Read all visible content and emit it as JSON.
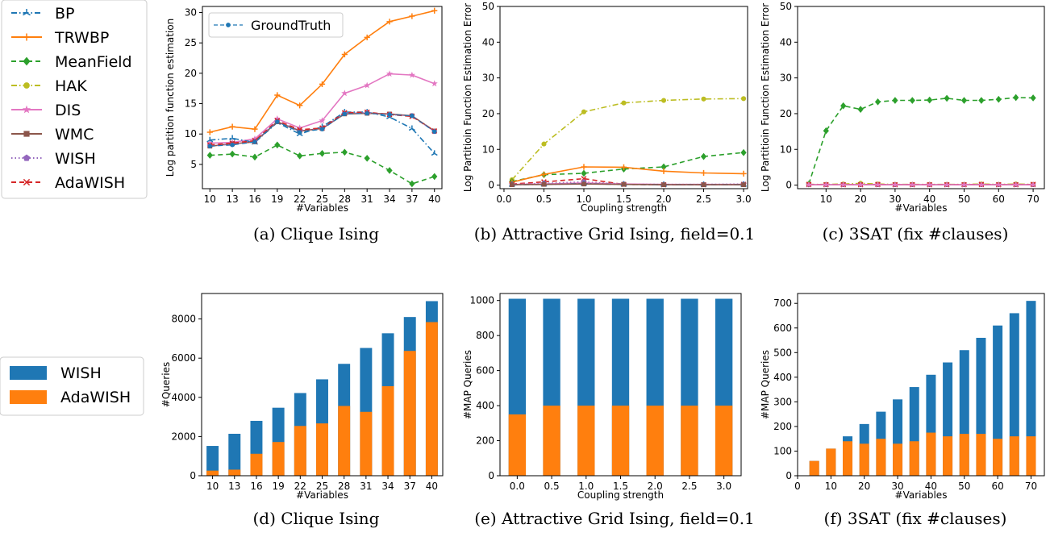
{
  "colors": {
    "BP": "#1f77b4",
    "TRWBP": "#ff7f0e",
    "MeanField": "#2ca02c",
    "HAK": "#bcbd22",
    "DIS": "#e377c2",
    "WMC": "#8c564b",
    "WISH": "#9467bd",
    "AdaWISH": "#d62728",
    "GroundTruth": "#1f77b4",
    "bar_wish": "#1f77b4",
    "bar_adawish": "#ff7f0e"
  },
  "legend_methods": {
    "items": [
      {
        "name": "BP",
        "style": "dashdot",
        "marker": "tri",
        "color_key": "BP"
      },
      {
        "name": "TRWBP",
        "style": "solid",
        "marker": "plus",
        "color_key": "TRWBP"
      },
      {
        "name": "MeanField",
        "style": "dashed",
        "marker": "diamond",
        "color_key": "MeanField"
      },
      {
        "name": "HAK",
        "style": "dashdot",
        "marker": "circle",
        "color_key": "HAK"
      },
      {
        "name": "DIS",
        "style": "solid",
        "marker": "star",
        "color_key": "DIS"
      },
      {
        "name": "WMC",
        "style": "solid",
        "marker": "square",
        "color_key": "WMC"
      },
      {
        "name": "WISH",
        "style": "dotted",
        "marker": "pentagon",
        "color_key": "WISH"
      },
      {
        "name": "AdaWISH",
        "style": "dashed",
        "marker": "x",
        "color_key": "AdaWISH"
      }
    ]
  },
  "legend_bars": {
    "items": [
      {
        "name": "WISH",
        "color_key": "bar_wish"
      },
      {
        "name": "AdaWISH",
        "color_key": "bar_adawish"
      }
    ]
  },
  "chart_data": [
    {
      "id": "a",
      "type": "line",
      "caption": "(a) Clique Ising",
      "xlabel": "#Variables",
      "ylabel": "Log partition function estimation",
      "x": [
        10,
        13,
        16,
        19,
        22,
        25,
        28,
        31,
        34,
        37,
        40
      ],
      "x_ticks": [
        10,
        13,
        16,
        19,
        22,
        25,
        28,
        31,
        34,
        37,
        40
      ],
      "xlim": [
        9,
        41
      ],
      "ylim": [
        1,
        31
      ],
      "y_ticks": [
        5,
        10,
        15,
        20,
        25,
        30
      ],
      "inner_legend": {
        "name": "GroundTruth",
        "placement": "top-left"
      },
      "series": [
        {
          "name": "TRWBP",
          "values": [
            10.3,
            11.2,
            10.8,
            16.4,
            14.7,
            18.2,
            23.1,
            25.9,
            28.5,
            29.4,
            30.3
          ]
        },
        {
          "name": "DIS",
          "values": [
            8.5,
            8.6,
            9.2,
            12.5,
            11.0,
            12.2,
            16.7,
            18.0,
            19.9,
            19.7,
            18.3
          ]
        },
        {
          "name": "BP",
          "values": [
            9.0,
            9.3,
            8.6,
            11.9,
            10.0,
            11.2,
            13.6,
            13.6,
            12.8,
            10.9,
            6.8
          ]
        },
        {
          "name": "WMC",
          "values": [
            8.0,
            8.4,
            8.7,
            12.0,
            10.5,
            10.9,
            13.3,
            13.4,
            13.3,
            13.0,
            10.5
          ]
        },
        {
          "name": "WISH",
          "values": [
            8.1,
            8.3,
            8.8,
            12.1,
            10.6,
            10.9,
            13.4,
            13.5,
            13.2,
            13.0,
            10.4
          ]
        },
        {
          "name": "AdaWISH",
          "values": [
            8.2,
            8.5,
            8.9,
            12.2,
            10.7,
            11.0,
            13.5,
            13.6,
            13.2,
            12.9,
            10.5
          ]
        },
        {
          "name": "GroundTruth",
          "values": [
            8.0,
            8.2,
            8.7,
            12.0,
            10.3,
            10.8,
            13.3,
            13.4,
            13.2,
            13.0,
            10.4
          ]
        },
        {
          "name": "MeanField",
          "values": [
            6.5,
            6.7,
            6.2,
            8.2,
            6.4,
            6.8,
            7.0,
            6.0,
            4.0,
            1.8,
            3.0
          ]
        }
      ]
    },
    {
      "id": "b",
      "type": "line",
      "caption": "(b) Attractive Grid Ising, field=0.1",
      "xlabel": "Coupling strength",
      "ylabel": "Log Partitioin Function Estimation Error",
      "x": [
        0.1,
        0.5,
        1.0,
        1.5,
        2.0,
        2.5,
        3.0
      ],
      "x_ticks": [
        0.0,
        0.5,
        1.0,
        1.5,
        2.0,
        2.5,
        3.0
      ],
      "x_tick_labels": [
        "0.0",
        "0.5",
        "1.0",
        "1.5",
        "2.0",
        "2.5",
        "3.0"
      ],
      "xlim": [
        -0.05,
        3.05
      ],
      "ylim": [
        -1,
        50
      ],
      "y_ticks": [
        0,
        10,
        20,
        30,
        40,
        50
      ],
      "series": [
        {
          "name": "HAK",
          "values": [
            1.5,
            11.5,
            20.5,
            23.0,
            23.7,
            24.1,
            24.2
          ]
        },
        {
          "name": "MeanField",
          "values": [
            1.0,
            2.9,
            3.3,
            4.5,
            5.1,
            8.0,
            9.1
          ]
        },
        {
          "name": "TRWBP",
          "values": [
            0.8,
            3.0,
            5.1,
            5.0,
            3.9,
            3.4,
            3.2
          ]
        },
        {
          "name": "AdaWISH",
          "values": [
            0.3,
            0.9,
            1.8,
            0.2,
            0.1,
            0.1,
            0.2
          ]
        },
        {
          "name": "WISH",
          "values": [
            0.2,
            0.5,
            0.9,
            0.3,
            0.2,
            0.2,
            0.3
          ]
        },
        {
          "name": "DIS",
          "values": [
            0.2,
            0.3,
            0.6,
            0.3,
            0.2,
            0.2,
            0.2
          ]
        },
        {
          "name": "BP",
          "values": [
            0.1,
            0.2,
            0.4,
            0.2,
            0.1,
            0.1,
            0.1
          ]
        },
        {
          "name": "WMC",
          "values": [
            0.1,
            0.2,
            0.3,
            0.2,
            0.1,
            0.1,
            0.1
          ]
        }
      ]
    },
    {
      "id": "c",
      "type": "line",
      "caption": "(c) 3SAT (fix #clauses)",
      "xlabel": "#Variables",
      "ylabel": "Log Partitioin Function Estimation Error",
      "x": [
        5,
        10,
        15,
        20,
        25,
        30,
        35,
        40,
        45,
        50,
        55,
        60,
        65,
        70
      ],
      "x_ticks": [
        10,
        20,
        30,
        40,
        50,
        60,
        70
      ],
      "xlim": [
        1.75,
        73.25
      ],
      "ylim": [
        -1,
        50
      ],
      "y_ticks": [
        0,
        10,
        20,
        30,
        40,
        50
      ],
      "series": [
        {
          "name": "MeanField",
          "values": [
            0.3,
            15.2,
            22.2,
            21.2,
            23.3,
            23.7,
            23.7,
            23.8,
            24.3,
            23.7,
            23.7,
            24.0,
            24.5,
            24.4
          ]
        },
        {
          "name": "HAK",
          "values": [
            0.2,
            0.2,
            0.3,
            0.5,
            0.3,
            0.2,
            0.2,
            0.2,
            0.2,
            0.2,
            0.3,
            0.2,
            0.3,
            0.2
          ]
        },
        {
          "name": "WMC",
          "values": [
            0.1,
            0.1,
            0.1,
            0.1,
            0.1,
            0.1,
            0.1,
            0.1,
            0.1,
            0.1,
            0.1,
            0.1,
            0.1,
            0.1
          ]
        },
        {
          "name": "AdaWISH",
          "values": [
            0.2,
            0.1,
            0.1,
            0.1,
            0.2,
            0.1,
            0.1,
            0.1,
            0.1,
            0.1,
            0.2,
            0.1,
            0.1,
            0.2
          ]
        },
        {
          "name": "DIS",
          "values": [
            0.1,
            0.1,
            0.1,
            0.1,
            0.1,
            0.1,
            0.1,
            0.1,
            0.1,
            0.1,
            0.1,
            0.1,
            0.1,
            0.1
          ]
        }
      ]
    },
    {
      "id": "d",
      "type": "bar",
      "caption": "(d) Clique Ising",
      "xlabel": "#Variables",
      "ylabel": "#Queries",
      "categories": [
        "10",
        "13",
        "16",
        "19",
        "22",
        "25",
        "28",
        "31",
        "34",
        "37",
        "40"
      ],
      "ylim": [
        0,
        9300
      ],
      "y_ticks": [
        0,
        2000,
        4000,
        6000,
        8000
      ],
      "series": [
        {
          "name": "WISH",
          "values": [
            1520,
            2140,
            2800,
            3470,
            4220,
            4920,
            5710,
            6520,
            7270,
            8100,
            8910
          ]
        },
        {
          "name": "AdaWISH",
          "values": [
            260,
            310,
            1120,
            1720,
            2540,
            2670,
            3560,
            3260,
            4570,
            6370,
            7840
          ]
        }
      ]
    },
    {
      "id": "e",
      "type": "bar",
      "caption": "(e) Attractive Grid Ising, field=0.1",
      "xlabel": "Coupling strength",
      "ylabel": "#MAP Queries",
      "categories": [
        "0.0",
        "0.5",
        "1.0",
        "1.5",
        "2.0",
        "2.5",
        "3.0"
      ],
      "ylim": [
        0,
        1040
      ],
      "y_ticks": [
        0,
        200,
        400,
        600,
        800,
        1000
      ],
      "series": [
        {
          "name": "WISH",
          "values": [
            1010,
            1010,
            1010,
            1010,
            1010,
            1010,
            1010
          ]
        },
        {
          "name": "AdaWISH",
          "values": [
            350,
            400,
            400,
            400,
            400,
            400,
            400
          ]
        }
      ]
    },
    {
      "id": "f",
      "type": "bar",
      "caption": "(f) 3SAT (fix #clauses)",
      "xlabel": "#Variables",
      "ylabel": "#MAP Queries",
      "x": [
        5,
        10,
        15,
        20,
        25,
        30,
        35,
        40,
        45,
        50,
        55,
        60,
        65,
        70
      ],
      "x_ticks": [
        0,
        10,
        20,
        30,
        40,
        50,
        60,
        70
      ],
      "xlim": [
        0,
        74
      ],
      "ylim": [
        0,
        740
      ],
      "y_ticks": [
        0,
        100,
        200,
        300,
        400,
        500,
        600,
        700
      ],
      "series": [
        {
          "name": "WISH",
          "values": [
            60,
            110,
            160,
            210,
            260,
            310,
            360,
            410,
            460,
            510,
            560,
            610,
            660,
            710
          ]
        },
        {
          "name": "AdaWISH",
          "values": [
            60,
            110,
            140,
            130,
            150,
            130,
            140,
            175,
            160,
            170,
            170,
            150,
            160,
            160
          ]
        }
      ]
    }
  ]
}
